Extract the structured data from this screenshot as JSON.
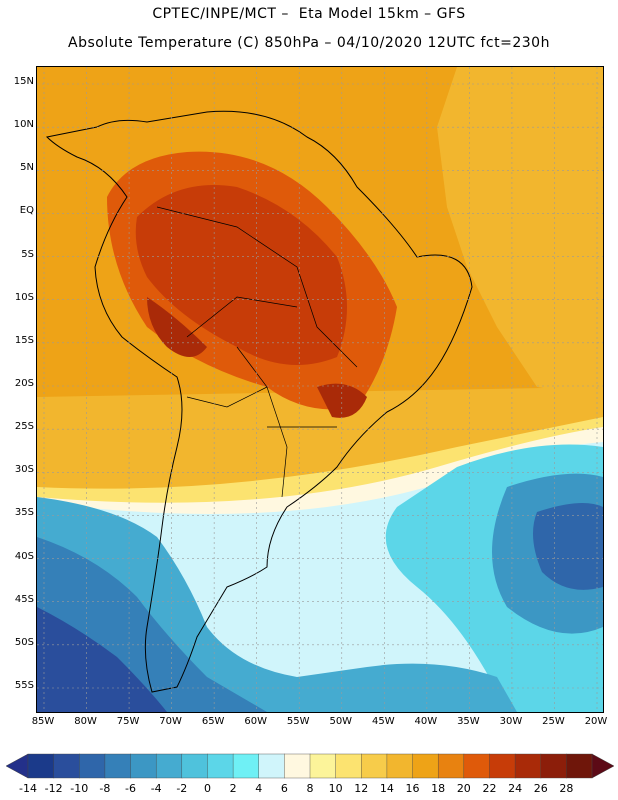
{
  "title": {
    "line1": "CPTEC/INPE/MCT –  Eta Model 15km – GFS",
    "line2": "Absolute Temperature (C) 850hPa – 04/10/2020 12UTC fct=230h"
  },
  "map": {
    "name": "South America 850hPa temperature field",
    "lat_labels": [
      "15N",
      "10N",
      "5N",
      "EQ",
      "5S",
      "10S",
      "15S",
      "20S",
      "25S",
      "30S",
      "35S",
      "40S",
      "45S",
      "50S",
      "55S"
    ],
    "lon_labels": [
      "85W",
      "80W",
      "75W",
      "70W",
      "65W",
      "60W",
      "55W",
      "50W",
      "45W",
      "40W",
      "35W",
      "30W",
      "25W",
      "20W"
    ],
    "lat_values": [
      15,
      10,
      5,
      0,
      -5,
      -10,
      -15,
      -20,
      -25,
      -30,
      -35,
      -40,
      -45,
      -50,
      -55
    ],
    "lon_values": [
      -85,
      -80,
      -75,
      -70,
      -65,
      -60,
      -55,
      -50,
      -45,
      -40,
      -35,
      -30,
      -25,
      -20
    ]
  },
  "colorbar": {
    "labels": [
      "-14",
      "-12",
      "-10",
      "-8",
      "-6",
      "-4",
      "-2",
      "0",
      "2",
      "4",
      "6",
      "8",
      "10",
      "12",
      "14",
      "16",
      "18",
      "20",
      "22",
      "24",
      "26",
      "28"
    ],
    "colors": [
      "#1b3a8a",
      "#2a4e9c",
      "#2f66aa",
      "#3580b8",
      "#3c97c4",
      "#45abd0",
      "#4fc2dc",
      "#5cd6e8",
      "#6ff0f5",
      "#d0f5fb",
      "#fff8e0",
      "#fcf49a",
      "#fce370",
      "#f7cc4a",
      "#f2b62e",
      "#eea317",
      "#e88210",
      "#df5a0a",
      "#c73c08",
      "#a92a08",
      "#8c1e0a",
      "#6f160a"
    ],
    "low_cap_color": "#23308a",
    "high_cap_color": "#5c0a16"
  }
}
